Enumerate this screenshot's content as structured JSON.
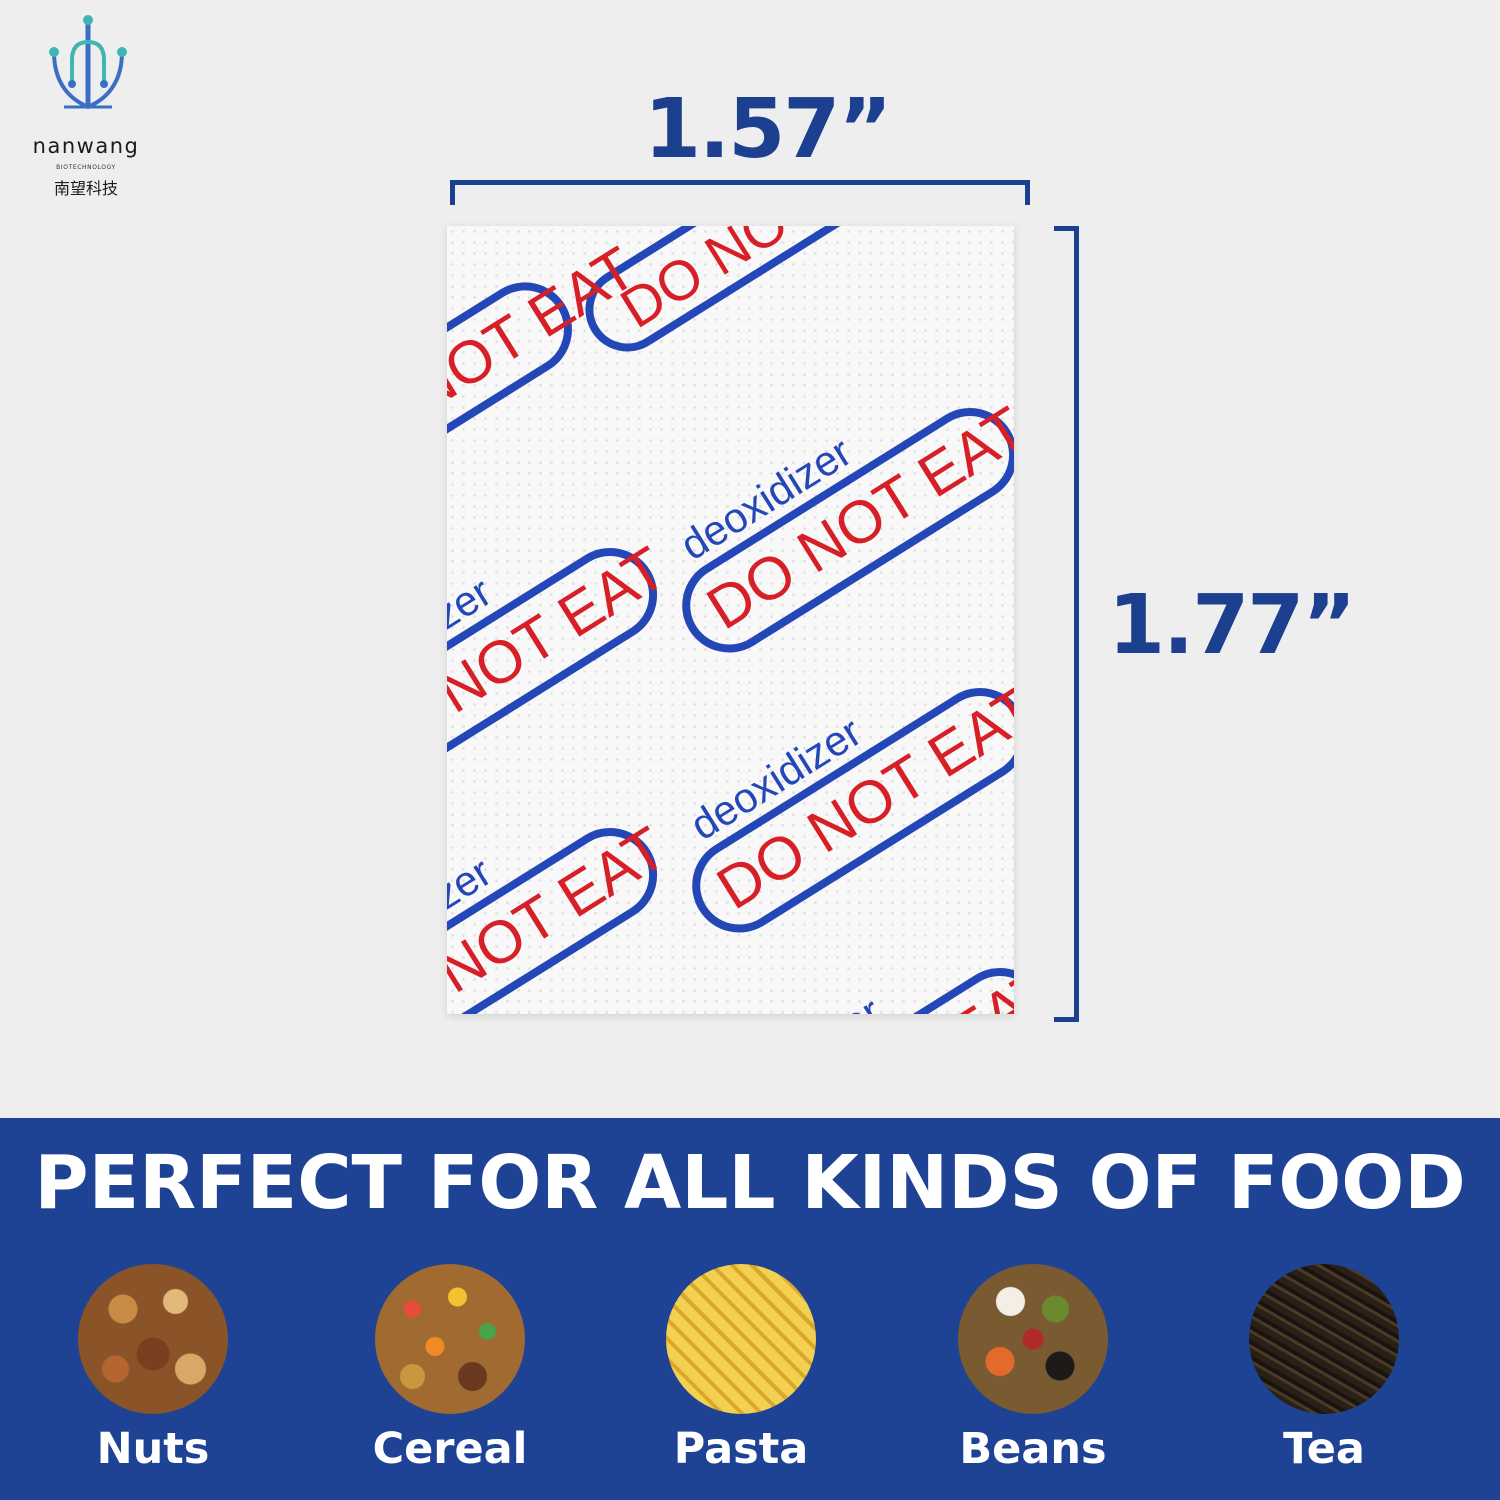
{
  "logo": {
    "name": "nanwang",
    "subtitle": "BIOTECHNOLOGY",
    "chinese": "南望科技",
    "colors": {
      "teal": "#3fb6b3",
      "blue": "#3b6fc4"
    }
  },
  "dimensions": {
    "width_label": "1.57”",
    "height_label": "1.77”",
    "color": "#1d3f8f"
  },
  "packet": {
    "label_word": "deoxidizer",
    "warning": "DO NOT EAT",
    "colors": {
      "blue": "#2447b8",
      "red": "#d61f26"
    }
  },
  "banner": {
    "title": "PERFECT FOR ALL KINDS OF FOOD",
    "background": "#1f4394",
    "foods": [
      {
        "label": "Nuts"
      },
      {
        "label": "Cereal"
      },
      {
        "label": "Pasta"
      },
      {
        "label": "Beans"
      },
      {
        "label": "Tea"
      }
    ]
  }
}
